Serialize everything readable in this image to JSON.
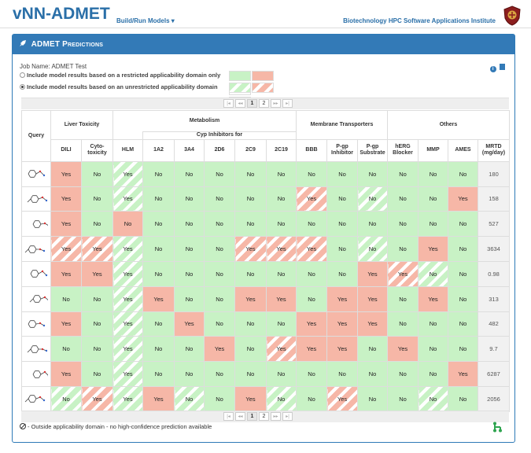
{
  "app": {
    "title": "vNN-ADMET",
    "nav_build": "Build/Run Models",
    "institute": "Biotechnology HPC Software Applications Institute"
  },
  "colors": {
    "accent": "#337ab7",
    "yes": "#f6b7a7",
    "no": "#c8f2c5"
  },
  "panel": {
    "title": "ADMET Predictions",
    "icon": "rocket-icon",
    "job_label": "Job Name: ADMET Test"
  },
  "options": [
    {
      "label": "Include model results based on a restricted applicability domain only",
      "selected": false
    },
    {
      "label": "Include model results based on an unrestricted applicability domain",
      "selected": true
    }
  ],
  "pager": {
    "first": "|◂",
    "prev": "◂◂",
    "pages": [
      "1",
      "2"
    ],
    "current": "1",
    "next": "▸▸",
    "last": "▸|"
  },
  "table": {
    "query_header": "Query",
    "groups": {
      "liver": "Liver Toxicity",
      "metabolism": "Metabolism",
      "cyp": "Cyp Inhibitors for",
      "membrane": "Membrane Transporters",
      "others": "Others"
    },
    "columns": [
      "DILI",
      "Cyto-toxicity",
      "HLM",
      "1A2",
      "3A4",
      "2D6",
      "2C9",
      "2C19",
      "BBB",
      "P-gp Inhibitor",
      "P-gp Substrate",
      "hERG Blocker",
      "MMP",
      "AMES",
      "MRTD (mg/day)"
    ],
    "rows": [
      {
        "cells": [
          [
            "Yes",
            "r"
          ],
          [
            "No",
            "g"
          ],
          [
            "Yes",
            "gh"
          ],
          [
            "No",
            "g"
          ],
          [
            "No",
            "g"
          ],
          [
            "No",
            "g"
          ],
          [
            "No",
            "g"
          ],
          [
            "No",
            "g"
          ],
          [
            "No",
            "g"
          ],
          [
            "No",
            "g"
          ],
          [
            "No",
            "g"
          ],
          [
            "No",
            "g"
          ],
          [
            "No",
            "g"
          ],
          [
            "No",
            "g"
          ]
        ],
        "mrtd": "180"
      },
      {
        "cells": [
          [
            "Yes",
            "r"
          ],
          [
            "No",
            "g"
          ],
          [
            "Yes",
            "gh"
          ],
          [
            "No",
            "g"
          ],
          [
            "No",
            "g"
          ],
          [
            "No",
            "g"
          ],
          [
            "No",
            "g"
          ],
          [
            "No",
            "g"
          ],
          [
            "Yes",
            "rh"
          ],
          [
            "No",
            "g"
          ],
          [
            "No",
            "gh"
          ],
          [
            "No",
            "g"
          ],
          [
            "No",
            "g"
          ],
          [
            "Yes",
            "r"
          ]
        ],
        "mrtd": "158"
      },
      {
        "cells": [
          [
            "Yes",
            "r"
          ],
          [
            "No",
            "g"
          ],
          [
            "No",
            "r"
          ],
          [
            "No",
            "g"
          ],
          [
            "No",
            "g"
          ],
          [
            "No",
            "g"
          ],
          [
            "No",
            "g"
          ],
          [
            "No",
            "g"
          ],
          [
            "No",
            "g"
          ],
          [
            "No",
            "g"
          ],
          [
            "No",
            "g"
          ],
          [
            "No",
            "g"
          ],
          [
            "No",
            "g"
          ],
          [
            "No",
            "g"
          ]
        ],
        "mrtd": "527"
      },
      {
        "cells": [
          [
            "Yes",
            "rh"
          ],
          [
            "Yes",
            "rh"
          ],
          [
            "Yes",
            "gh"
          ],
          [
            "No",
            "g"
          ],
          [
            "No",
            "g"
          ],
          [
            "No",
            "g"
          ],
          [
            "Yes",
            "rh"
          ],
          [
            "Yes",
            "rh"
          ],
          [
            "Yes",
            "rh"
          ],
          [
            "No",
            "g"
          ],
          [
            "No",
            "gh"
          ],
          [
            "No",
            "g"
          ],
          [
            "Yes",
            "r"
          ],
          [
            "No",
            "g"
          ]
        ],
        "mrtd": "3634"
      },
      {
        "cells": [
          [
            "Yes",
            "r"
          ],
          [
            "Yes",
            "r"
          ],
          [
            "Yes",
            "gh"
          ],
          [
            "No",
            "g"
          ],
          [
            "No",
            "g"
          ],
          [
            "No",
            "g"
          ],
          [
            "No",
            "g"
          ],
          [
            "No",
            "g"
          ],
          [
            "No",
            "g"
          ],
          [
            "No",
            "g"
          ],
          [
            "Yes",
            "r"
          ],
          [
            "Yes",
            "rh"
          ],
          [
            "No",
            "gh"
          ],
          [
            "No",
            "g"
          ]
        ],
        "mrtd": "0.98"
      },
      {
        "cells": [
          [
            "No",
            "g"
          ],
          [
            "No",
            "g"
          ],
          [
            "Yes",
            "gh"
          ],
          [
            "Yes",
            "r"
          ],
          [
            "No",
            "g"
          ],
          [
            "No",
            "g"
          ],
          [
            "Yes",
            "r"
          ],
          [
            "Yes",
            "r"
          ],
          [
            "No",
            "g"
          ],
          [
            "Yes",
            "r"
          ],
          [
            "Yes",
            "r"
          ],
          [
            "No",
            "g"
          ],
          [
            "Yes",
            "r"
          ],
          [
            "No",
            "g"
          ]
        ],
        "mrtd": "313"
      },
      {
        "cells": [
          [
            "Yes",
            "r"
          ],
          [
            "No",
            "g"
          ],
          [
            "Yes",
            "gh"
          ],
          [
            "No",
            "g"
          ],
          [
            "Yes",
            "r"
          ],
          [
            "No",
            "g"
          ],
          [
            "No",
            "g"
          ],
          [
            "No",
            "g"
          ],
          [
            "Yes",
            "r"
          ],
          [
            "Yes",
            "r"
          ],
          [
            "Yes",
            "r"
          ],
          [
            "No",
            "g"
          ],
          [
            "No",
            "g"
          ],
          [
            "No",
            "g"
          ]
        ],
        "mrtd": "482"
      },
      {
        "cells": [
          [
            "No",
            "g"
          ],
          [
            "No",
            "g"
          ],
          [
            "Yes",
            "gh"
          ],
          [
            "No",
            "g"
          ],
          [
            "No",
            "g"
          ],
          [
            "Yes",
            "r"
          ],
          [
            "No",
            "g"
          ],
          [
            "Yes",
            "rh"
          ],
          [
            "Yes",
            "r"
          ],
          [
            "Yes",
            "r"
          ],
          [
            "No",
            "g"
          ],
          [
            "Yes",
            "r"
          ],
          [
            "No",
            "g"
          ],
          [
            "No",
            "g"
          ]
        ],
        "mrtd": "9.7"
      },
      {
        "cells": [
          [
            "Yes",
            "r"
          ],
          [
            "No",
            "g"
          ],
          [
            "Yes",
            "gh"
          ],
          [
            "No",
            "g"
          ],
          [
            "No",
            "g"
          ],
          [
            "No",
            "g"
          ],
          [
            "No",
            "g"
          ],
          [
            "No",
            "g"
          ],
          [
            "No",
            "g"
          ],
          [
            "No",
            "g"
          ],
          [
            "No",
            "g"
          ],
          [
            "No",
            "g"
          ],
          [
            "No",
            "g"
          ],
          [
            "Yes",
            "r"
          ]
        ],
        "mrtd": "6287"
      },
      {
        "cells": [
          [
            "No",
            "gh"
          ],
          [
            "Yes",
            "rh"
          ],
          [
            "Yes",
            "gh"
          ],
          [
            "Yes",
            "r"
          ],
          [
            "No",
            "gh"
          ],
          [
            "No",
            "g"
          ],
          [
            "Yes",
            "r"
          ],
          [
            "No",
            "gh"
          ],
          [
            "No",
            "g"
          ],
          [
            "Yes",
            "rh"
          ],
          [
            "No",
            "g"
          ],
          [
            "No",
            "g"
          ],
          [
            "No",
            "gh"
          ],
          [
            "No",
            "g"
          ]
        ],
        "mrtd": "2056"
      }
    ]
  },
  "footer": {
    "note": "- Outside applicability domain - no high-confidence prediction available"
  }
}
